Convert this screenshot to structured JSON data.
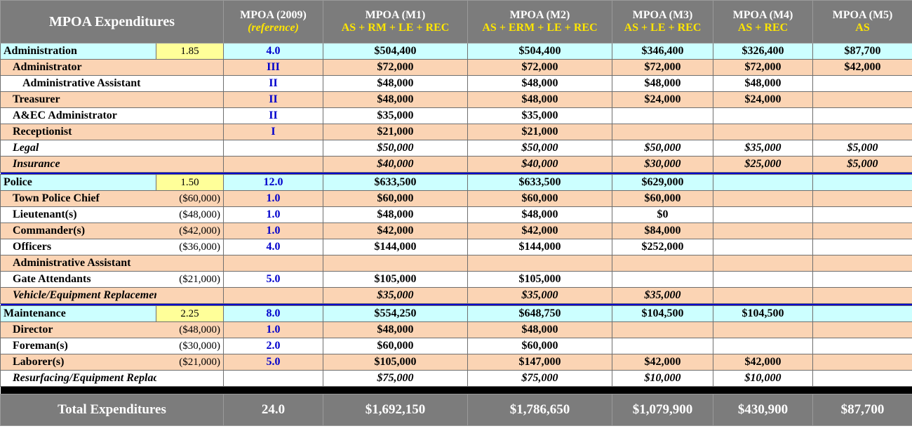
{
  "header": {
    "title": "MPOA Expenditures",
    "columns": [
      {
        "name": "MPOA (2009)",
        "sub": "(reference)"
      },
      {
        "name": "MPOA (M1)",
        "sub": "AS + RM + LE + REC"
      },
      {
        "name": "MPOA (M2)",
        "sub": "AS + ERM + LE + REC"
      },
      {
        "name": "MPOA (M3)",
        "sub": "AS + LE + REC"
      },
      {
        "name": "MPOA (M4)",
        "sub": "AS + REC"
      },
      {
        "name": "MPOA (M5)",
        "sub": "AS"
      }
    ]
  },
  "sections": [
    {
      "name": "Administration",
      "factor": "1.85",
      "ref": "4.0",
      "values": [
        "$504,400",
        "$504,400",
        "$346,400",
        "$326,400",
        "$87,700"
      ],
      "rows": [
        {
          "label": "Administrator",
          "salary": "",
          "ref": "III",
          "values": [
            "$72,000",
            "$72,000",
            "$72,000",
            "$72,000",
            "$42,000"
          ]
        },
        {
          "label": "Administrative Assistant",
          "salary": "",
          "ref": "II",
          "values": [
            "$48,000",
            "$48,000",
            "$48,000",
            "$48,000",
            ""
          ]
        },
        {
          "label": "Treasurer",
          "salary": "",
          "ref": "II",
          "values": [
            "$48,000",
            "$48,000",
            "$24,000",
            "$24,000",
            ""
          ]
        },
        {
          "label": "A&EC Administrator",
          "salary": "",
          "ref": "II",
          "values": [
            "$35,000",
            "$35,000",
            "",
            "",
            ""
          ]
        },
        {
          "label": "Receptionist",
          "salary": "",
          "ref": "I",
          "values": [
            "$21,000",
            "$21,000",
            "",
            "",
            ""
          ]
        },
        {
          "label": "Legal",
          "salary": "",
          "ref": "",
          "values": [
            "$50,000",
            "$50,000",
            "$50,000",
            "$35,000",
            "$5,000"
          ]
        },
        {
          "label": "Insurance",
          "salary": "",
          "ref": "",
          "values": [
            "$40,000",
            "$40,000",
            "$30,000",
            "$25,000",
            "$5,000"
          ]
        }
      ]
    },
    {
      "name": "Police",
      "factor": "1.50",
      "ref": "12.0",
      "values": [
        "$633,500",
        "$633,500",
        "$629,000",
        "",
        ""
      ],
      "rows": [
        {
          "label": "Town Police Chief",
          "salary": "($60,000)",
          "ref": "1.0",
          "values": [
            "$60,000",
            "$60,000",
            "$60,000",
            "",
            ""
          ]
        },
        {
          "label": "Lieutenant(s)",
          "salary": "($48,000)",
          "ref": "1.0",
          "values": [
            "$48,000",
            "$48,000",
            "$0",
            "",
            ""
          ]
        },
        {
          "label": "Commander(s)",
          "salary": "($42,000)",
          "ref": "1.0",
          "values": [
            "$42,000",
            "$42,000",
            "$84,000",
            "",
            ""
          ]
        },
        {
          "label": "Officers",
          "salary": "($36,000)",
          "ref": "4.0",
          "values": [
            "$144,000",
            "$144,000",
            "$252,000",
            "",
            ""
          ]
        },
        {
          "label": "Administrative Assistant",
          "salary": "",
          "ref": "",
          "values": [
            "",
            "",
            "",
            "",
            ""
          ]
        },
        {
          "label": "Gate Attendants",
          "salary": "($21,000)",
          "ref": "5.0",
          "values": [
            "$105,000",
            "$105,000",
            "",
            "",
            ""
          ]
        },
        {
          "label": "Vehicle/Equipment Replacement",
          "salary": "",
          "ref": "",
          "values": [
            "$35,000",
            "$35,000",
            "$35,000",
            "",
            ""
          ]
        }
      ]
    },
    {
      "name": "Maintenance",
      "factor": "2.25",
      "ref": "8.0",
      "values": [
        "$554,250",
        "$648,750",
        "$104,500",
        "$104,500",
        ""
      ],
      "rows": [
        {
          "label": "Director",
          "salary": "($48,000)",
          "ref": "1.0",
          "values": [
            "$48,000",
            "$48,000",
            "",
            "",
            ""
          ]
        },
        {
          "label": "Foreman(s)",
          "salary": "($30,000)",
          "ref": "2.0",
          "values": [
            "$60,000",
            "$60,000",
            "",
            "",
            ""
          ]
        },
        {
          "label": "Laborer(s)",
          "salary": "($21,000)",
          "ref": "5.0",
          "values": [
            "$105,000",
            "$147,000",
            "$42,000",
            "$42,000",
            ""
          ]
        },
        {
          "label": "Resurfacing/Equipment Replacement",
          "salary": "",
          "ref": "",
          "values": [
            "$75,000",
            "$75,000",
            "$10,000",
            "$10,000",
            ""
          ]
        }
      ]
    }
  ],
  "total": {
    "label": "Total Expenditures",
    "ref": "24.0",
    "values": [
      "$1,692,150",
      "$1,786,650",
      "$1,079,900",
      "$430,900",
      "$87,700"
    ]
  }
}
